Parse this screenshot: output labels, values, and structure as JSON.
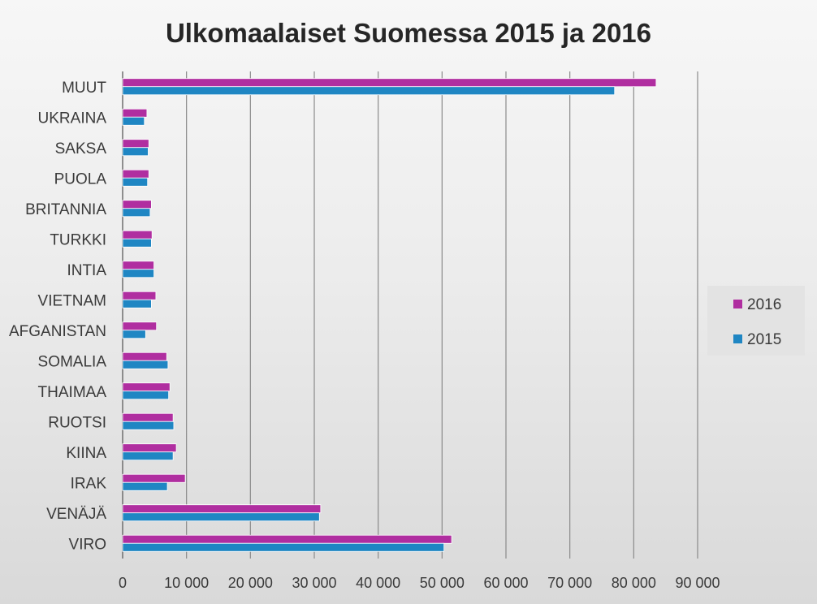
{
  "chart_data": {
    "type": "bar",
    "orientation": "horizontal",
    "title": "Ulkomaalaiset Suomessa 2015 ja 2016",
    "categories": [
      "VIRO",
      "VENÄJÄ",
      "IRAK",
      "KIINA",
      "RUOTSI",
      "THAIMAA",
      "SOMALIA",
      "AFGANISTAN",
      "VIETNAM",
      "INTIA",
      "TURKKI",
      "BRITANNIA",
      "PUOLA",
      "SAKSA",
      "UKRAINA",
      "MUUT"
    ],
    "series": [
      {
        "name": "2016",
        "color": "#b02ea0",
        "values": [
          51500,
          31000,
          9800,
          8400,
          7900,
          7400,
          6900,
          5300,
          5200,
          4900,
          4600,
          4500,
          4100,
          4100,
          3800,
          83500
        ]
      },
      {
        "name": "2015",
        "color": "#1f86c3",
        "values": [
          50300,
          30800,
          7000,
          7900,
          8000,
          7200,
          7100,
          3600,
          4500,
          4900,
          4500,
          4300,
          3900,
          4000,
          3400,
          77000
        ]
      }
    ],
    "xlim": [
      0,
      90000
    ],
    "xticks": [
      "0",
      "10 000",
      "20 000",
      "30 000",
      "40 000",
      "50 000",
      "60 000",
      "70 000",
      "80 000",
      "90 000"
    ],
    "grid": "vertical",
    "legend_position": "right"
  }
}
